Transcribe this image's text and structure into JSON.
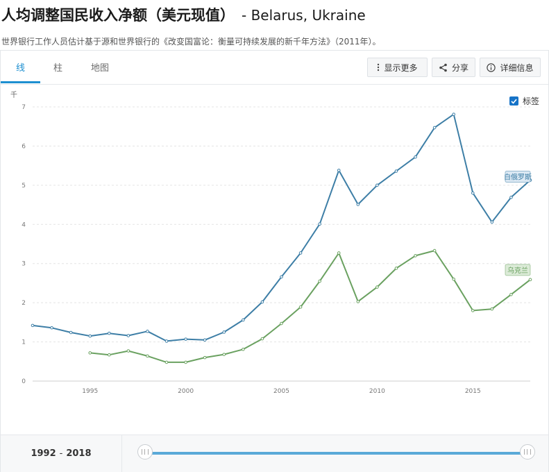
{
  "header": {
    "title": "人均调整国民收入净额（美元现值）",
    "countries": "- Belarus, Ukraine",
    "subtitle": "世界银行工作人员估计基于源和世界银行的《改变国富论：衡量可持续发展的新千年方法》（2011年）。"
  },
  "tabs": [
    {
      "label": "线",
      "active": true
    },
    {
      "label": "柱",
      "active": false
    },
    {
      "label": "地图",
      "active": false
    }
  ],
  "toolbar": {
    "more_label": "显示更多",
    "share_label": "分享",
    "details_label": "详细信息"
  },
  "legend": {
    "label_toggle": "标签",
    "checked": true
  },
  "footer": {
    "range_start": "1992",
    "range_sep": "-",
    "range_end": "2018"
  },
  "chart_data": {
    "type": "line",
    "yunit": "千",
    "x": [
      1992,
      1993,
      1994,
      1995,
      1996,
      1997,
      1998,
      1999,
      2000,
      2001,
      2002,
      2003,
      2004,
      2005,
      2006,
      2007,
      2008,
      2009,
      2010,
      2011,
      2012,
      2013,
      2014,
      2015,
      2016,
      2017,
      2018
    ],
    "xticks": [
      "1995",
      "2000",
      "2005",
      "2010",
      "2015"
    ],
    "xtick_values": [
      1995,
      2000,
      2005,
      2010,
      2015
    ],
    "yticks": [
      "0",
      "1",
      "2",
      "3",
      "4",
      "5",
      "6",
      "7"
    ],
    "ylim": [
      0,
      7
    ],
    "xlim": [
      1992,
      2018
    ],
    "grid": true,
    "series": [
      {
        "name": "白俄罗斯",
        "color": "#3d7ea6",
        "label_bg": "#dbe8f3",
        "values": [
          1.42,
          1.36,
          1.24,
          1.15,
          1.22,
          1.16,
          1.27,
          1.02,
          1.07,
          1.05,
          1.25,
          1.56,
          2.02,
          2.66,
          3.27,
          4.01,
          5.38,
          4.51,
          5.0,
          5.36,
          5.72,
          6.47,
          6.81,
          4.8,
          4.06,
          4.69,
          5.13
        ]
      },
      {
        "name": "乌克兰",
        "color": "#6aa160",
        "label_bg": "#dcebd8",
        "values": [
          null,
          null,
          null,
          0.72,
          0.67,
          0.77,
          0.64,
          0.48,
          0.48,
          0.6,
          0.68,
          0.81,
          1.08,
          1.47,
          1.89,
          2.55,
          3.27,
          2.03,
          2.4,
          2.88,
          3.2,
          3.33,
          2.6,
          1.8,
          1.84,
          2.21,
          2.59
        ]
      }
    ]
  }
}
